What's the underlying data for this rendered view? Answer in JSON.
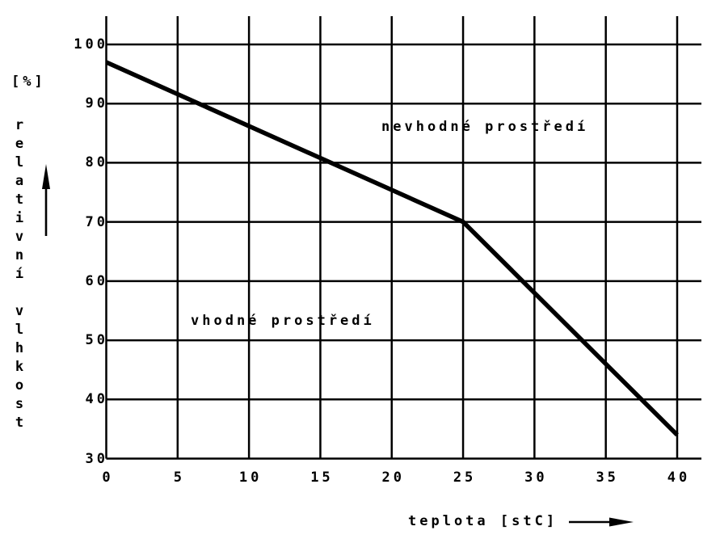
{
  "chart_data": {
    "type": "line",
    "title": "",
    "x": [
      0,
      25,
      40
    ],
    "y": [
      97,
      70,
      34
    ],
    "xlabel": "teplota [stC]",
    "ylabel": "relativní vlhkost",
    "ylabel_unit": "[%]",
    "x_ticks": [
      0,
      5,
      10,
      15,
      20,
      25,
      30,
      35,
      40
    ],
    "y_ticks": [
      100,
      90,
      80,
      70,
      60,
      50,
      40,
      30
    ],
    "xlim": [
      0,
      40
    ],
    "ylim": [
      30,
      100
    ],
    "grid": true,
    "legend": "none",
    "line_color": "#000000",
    "grid_color": "#000000",
    "annotations": [
      {
        "text": "nevhodné prostředí",
        "region": "above-line",
        "near_xy": [
          22,
          86
        ]
      },
      {
        "text": "vhodné prostředí",
        "region": "below-line",
        "near_xy": [
          8,
          53
        ]
      }
    ]
  }
}
